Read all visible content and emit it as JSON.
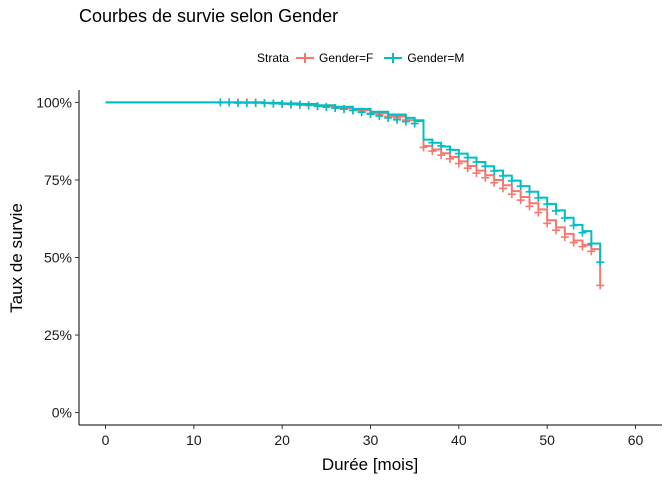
{
  "chart_data": {
    "type": "line",
    "title": "Courbes de survie selon Gender",
    "xlabel": "Durée [mois]",
    "ylabel": "Taux de survie",
    "xlim": [
      -3,
      63
    ],
    "ylim": [
      -0.04,
      1.04
    ],
    "x_ticks": [
      0,
      10,
      20,
      30,
      40,
      50,
      60
    ],
    "x_tick_labels": [
      "0",
      "10",
      "20",
      "30",
      "40",
      "50",
      "60"
    ],
    "y_ticks": [
      0,
      0.25,
      0.5,
      0.75,
      1.0
    ],
    "y_tick_labels": [
      "0%",
      "25%",
      "50%",
      "75%",
      "100%"
    ],
    "grid": false,
    "legend": {
      "title": "Strata",
      "position": "top"
    },
    "series": [
      {
        "name": "Gender=F",
        "color": "#F8766D",
        "steps": [
          [
            0,
            1.0
          ],
          [
            13,
            1.0
          ],
          [
            18,
            0.998
          ],
          [
            20,
            0.995
          ],
          [
            22,
            0.992
          ],
          [
            24,
            0.988
          ],
          [
            26,
            0.982
          ],
          [
            28,
            0.975
          ],
          [
            30,
            0.965
          ],
          [
            32,
            0.955
          ],
          [
            34,
            0.943
          ],
          [
            36,
            0.86
          ],
          [
            37,
            0.848
          ],
          [
            38,
            0.836
          ],
          [
            39,
            0.824
          ],
          [
            40,
            0.81
          ],
          [
            41,
            0.795
          ],
          [
            42,
            0.78
          ],
          [
            43,
            0.765
          ],
          [
            44,
            0.75
          ],
          [
            45,
            0.733
          ],
          [
            46,
            0.714
          ],
          [
            47,
            0.695
          ],
          [
            48,
            0.675
          ],
          [
            49,
            0.655
          ],
          [
            50,
            0.62
          ],
          [
            51,
            0.597
          ],
          [
            52,
            0.576
          ],
          [
            53,
            0.555
          ],
          [
            54,
            0.54
          ],
          [
            55,
            0.527
          ],
          [
            56,
            0.485
          ],
          [
            56,
            0.415
          ]
        ],
        "censor_x": [
          13,
          14,
          15,
          16,
          17,
          18,
          19,
          20,
          21,
          22,
          23,
          24,
          25,
          26,
          27,
          28,
          29,
          30,
          31,
          32,
          33,
          34,
          35,
          36,
          37,
          38,
          39,
          40,
          41,
          42,
          43,
          44,
          45,
          46,
          47,
          48,
          49,
          50,
          51,
          52,
          53,
          54,
          55,
          56
        ],
        "censor_y": [
          1.0,
          1.0,
          1.0,
          1.0,
          1.0,
          0.998,
          0.996,
          0.995,
          0.993,
          0.992,
          0.99,
          0.988,
          0.985,
          0.982,
          0.979,
          0.975,
          0.97,
          0.965,
          0.96,
          0.955,
          0.95,
          0.943,
          0.932,
          0.855,
          0.843,
          0.83,
          0.818,
          0.803,
          0.788,
          0.772,
          0.757,
          0.741,
          0.723,
          0.704,
          0.685,
          0.665,
          0.645,
          0.61,
          0.588,
          0.566,
          0.548,
          0.535,
          0.52,
          0.41
        ]
      },
      {
        "name": "Gender=M",
        "color": "#00BFC4",
        "steps": [
          [
            0,
            1.0
          ],
          [
            13,
            1.0
          ],
          [
            18,
            0.999
          ],
          [
            20,
            0.997
          ],
          [
            22,
            0.995
          ],
          [
            24,
            0.991
          ],
          [
            26,
            0.986
          ],
          [
            28,
            0.979
          ],
          [
            30,
            0.97
          ],
          [
            32,
            0.961
          ],
          [
            34,
            0.95
          ],
          [
            35,
            0.94
          ],
          [
            36,
            0.88
          ],
          [
            37,
            0.87
          ],
          [
            38,
            0.858
          ],
          [
            39,
            0.847
          ],
          [
            40,
            0.835
          ],
          [
            41,
            0.822
          ],
          [
            42,
            0.808
          ],
          [
            43,
            0.794
          ],
          [
            44,
            0.78
          ],
          [
            45,
            0.764
          ],
          [
            46,
            0.748
          ],
          [
            47,
            0.73
          ],
          [
            48,
            0.712
          ],
          [
            49,
            0.693
          ],
          [
            50,
            0.673
          ],
          [
            51,
            0.652
          ],
          [
            52,
            0.628
          ],
          [
            53,
            0.605
          ],
          [
            54,
            0.585
          ],
          [
            55,
            0.545
          ],
          [
            56,
            0.49
          ]
        ],
        "censor_x": [
          13,
          14,
          15,
          16,
          17,
          18,
          19,
          20,
          21,
          22,
          23,
          24,
          25,
          26,
          27,
          28,
          29,
          30,
          31,
          32,
          33,
          34,
          35,
          37,
          38,
          39,
          40,
          41,
          42,
          43,
          44,
          45,
          46,
          47,
          48,
          49,
          50,
          51,
          52,
          53,
          54,
          55,
          56
        ],
        "censor_y": [
          1.0,
          1.0,
          0.998,
          0.998,
          0.998,
          0.997,
          0.996,
          0.995,
          0.994,
          0.993,
          0.991,
          0.988,
          0.985,
          0.982,
          0.978,
          0.974,
          0.968,
          0.962,
          0.956,
          0.95,
          0.944,
          0.938,
          0.932,
          0.87,
          0.86,
          0.848,
          0.835,
          0.822,
          0.808,
          0.794,
          0.779,
          0.763,
          0.747,
          0.73,
          0.712,
          0.692,
          0.672,
          0.65,
          0.627,
          0.603,
          0.58,
          0.545,
          0.485
        ]
      }
    ]
  }
}
